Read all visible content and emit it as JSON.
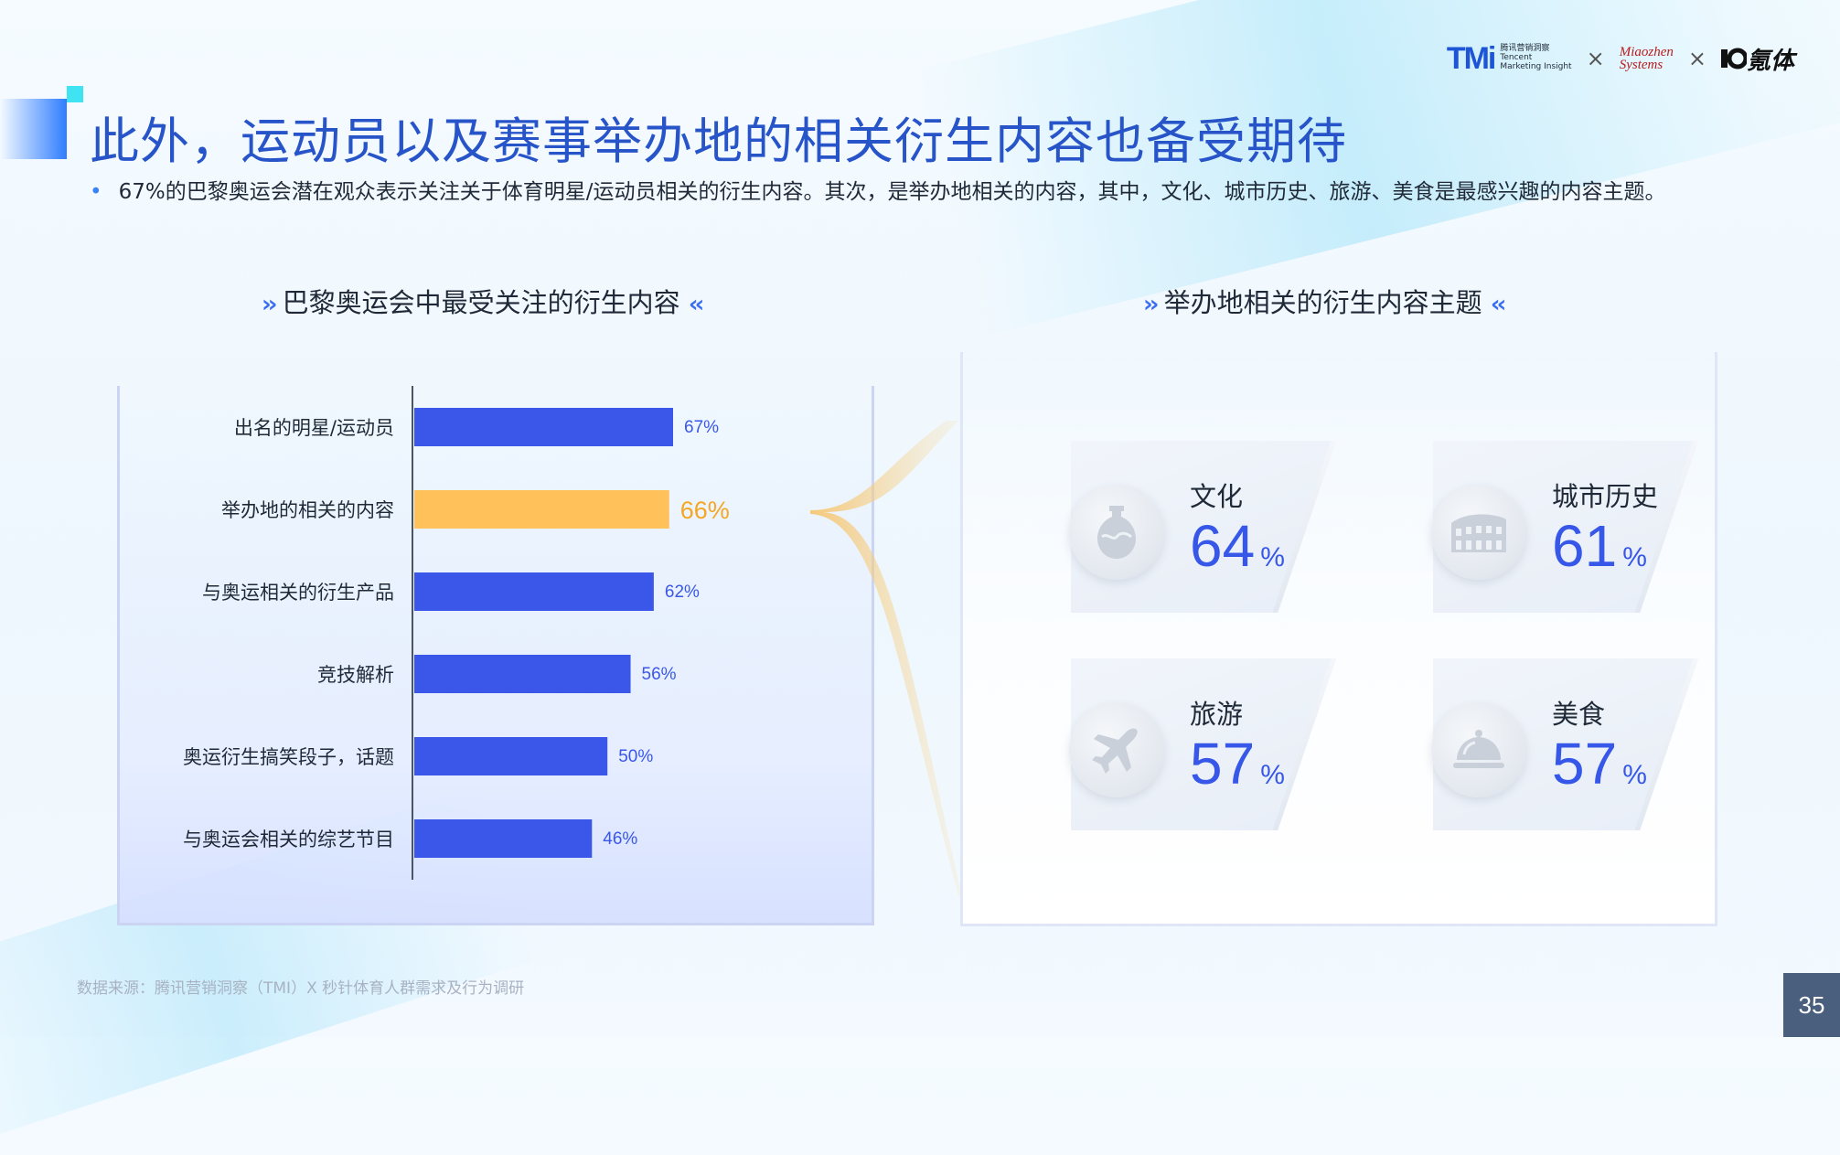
{
  "header": {
    "title": "此外，运动员以及赛事举办地的相关衍生内容也备受期待",
    "bullet": "67%的巴黎奥运会潜在观众表示关注关于体育明星/运动员相关的衍生内容。其次，是举办地相关的内容，其中，文化、城市历史、旅游、美食是最感兴趣的内容主题。"
  },
  "logos": {
    "tmi": "TMi",
    "tmi_cn": "腾讯营销洞察",
    "tmi_en1": "Tencent",
    "tmi_en2": "Marketing Insight",
    "sep": "×",
    "miaozhen_line1": "Miaozhen",
    "miaozhen_line2": "Systems",
    "third": "氪体"
  },
  "left_section": {
    "title": "巴黎奥运会中最受关注的衍生内容"
  },
  "right_section": {
    "title": "举办地相关的衍生内容主题"
  },
  "chart_data": {
    "type": "bar",
    "orientation": "horizontal",
    "categories": [
      "出名的明星/运动员",
      "举办地的相关的内容",
      "与奥运相关的衍生产品",
      "竞技解析",
      "奥运衍生搞笑段子，话题",
      "与奥运会相关的综艺节目"
    ],
    "values": [
      67,
      66,
      62,
      56,
      50,
      46
    ],
    "value_labels": [
      "67%",
      "66%",
      "62%",
      "56%",
      "50%",
      "46%"
    ],
    "highlight_index": 1,
    "colors": {
      "bar": "#3a57ea",
      "highlight": "#ffc25a",
      "label": "#3a57ea",
      "highlight_label": "#f5a623"
    }
  },
  "topics": [
    {
      "label": "文化",
      "value": "64",
      "unit": "%",
      "icon": "vase-icon"
    },
    {
      "label": "城市历史",
      "value": "61",
      "unit": "%",
      "icon": "colosseum-icon"
    },
    {
      "label": "旅游",
      "value": "57",
      "unit": "%",
      "icon": "airplane-icon"
    },
    {
      "label": "美食",
      "value": "57",
      "unit": "%",
      "icon": "cloche-icon"
    }
  ],
  "footnote": "数据来源：腾讯营销洞察（TMI）X 秒针体育人群需求及行为调研",
  "page_number": "35"
}
